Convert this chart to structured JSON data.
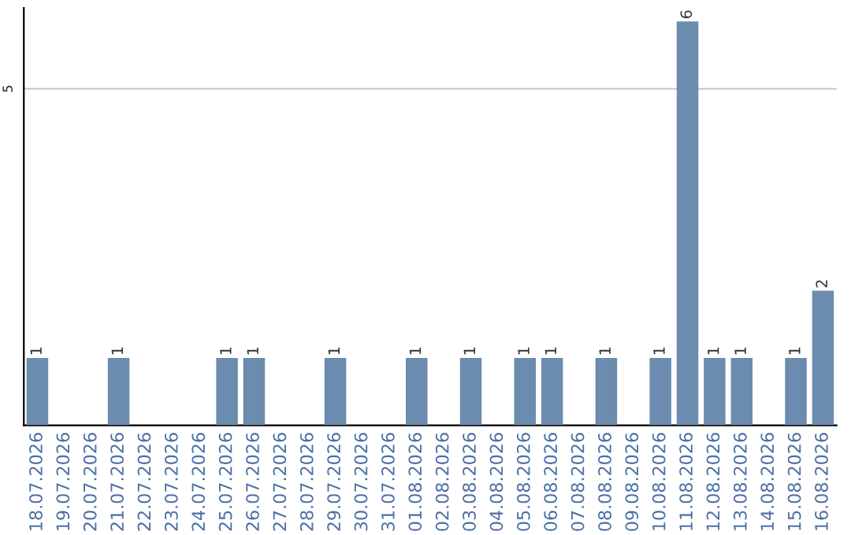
{
  "chart_data": {
    "type": "bar",
    "categories": [
      "18.07.2026",
      "19.07.2026",
      "20.07.2026",
      "21.07.2026",
      "22.07.2026",
      "23.07.2026",
      "24.07.2026",
      "25.07.2026",
      "26.07.2026",
      "27.07.2026",
      "28.07.2026",
      "29.07.2026",
      "30.07.2026",
      "31.07.2026",
      "01.08.2026",
      "02.08.2026",
      "03.08.2026",
      "04.08.2026",
      "05.08.2026",
      "06.08.2026",
      "07.08.2026",
      "08.08.2026",
      "09.08.2026",
      "10.08.2026",
      "11.08.2026",
      "12.08.2026",
      "13.08.2026",
      "14.08.2026",
      "15.08.2026",
      "16.08.2026"
    ],
    "values": [
      1,
      0,
      0,
      1,
      0,
      0,
      0,
      1,
      1,
      0,
      0,
      1,
      0,
      0,
      1,
      0,
      1,
      0,
      1,
      1,
      0,
      1,
      0,
      1,
      6,
      1,
      1,
      0,
      1,
      2
    ],
    "value_labels": [
      "1",
      null,
      null,
      "1",
      null,
      null,
      null,
      "1",
      "1",
      null,
      null,
      "1",
      null,
      null,
      "1",
      null,
      "1",
      null,
      "1",
      "1",
      null,
      "1",
      null,
      "1",
      "6",
      "1",
      "1",
      null,
      "1",
      "2"
    ],
    "color": "#6b8cae",
    "ylim": [
      0,
      6.2
    ],
    "yticks": [
      5
    ],
    "grid": "y"
  }
}
